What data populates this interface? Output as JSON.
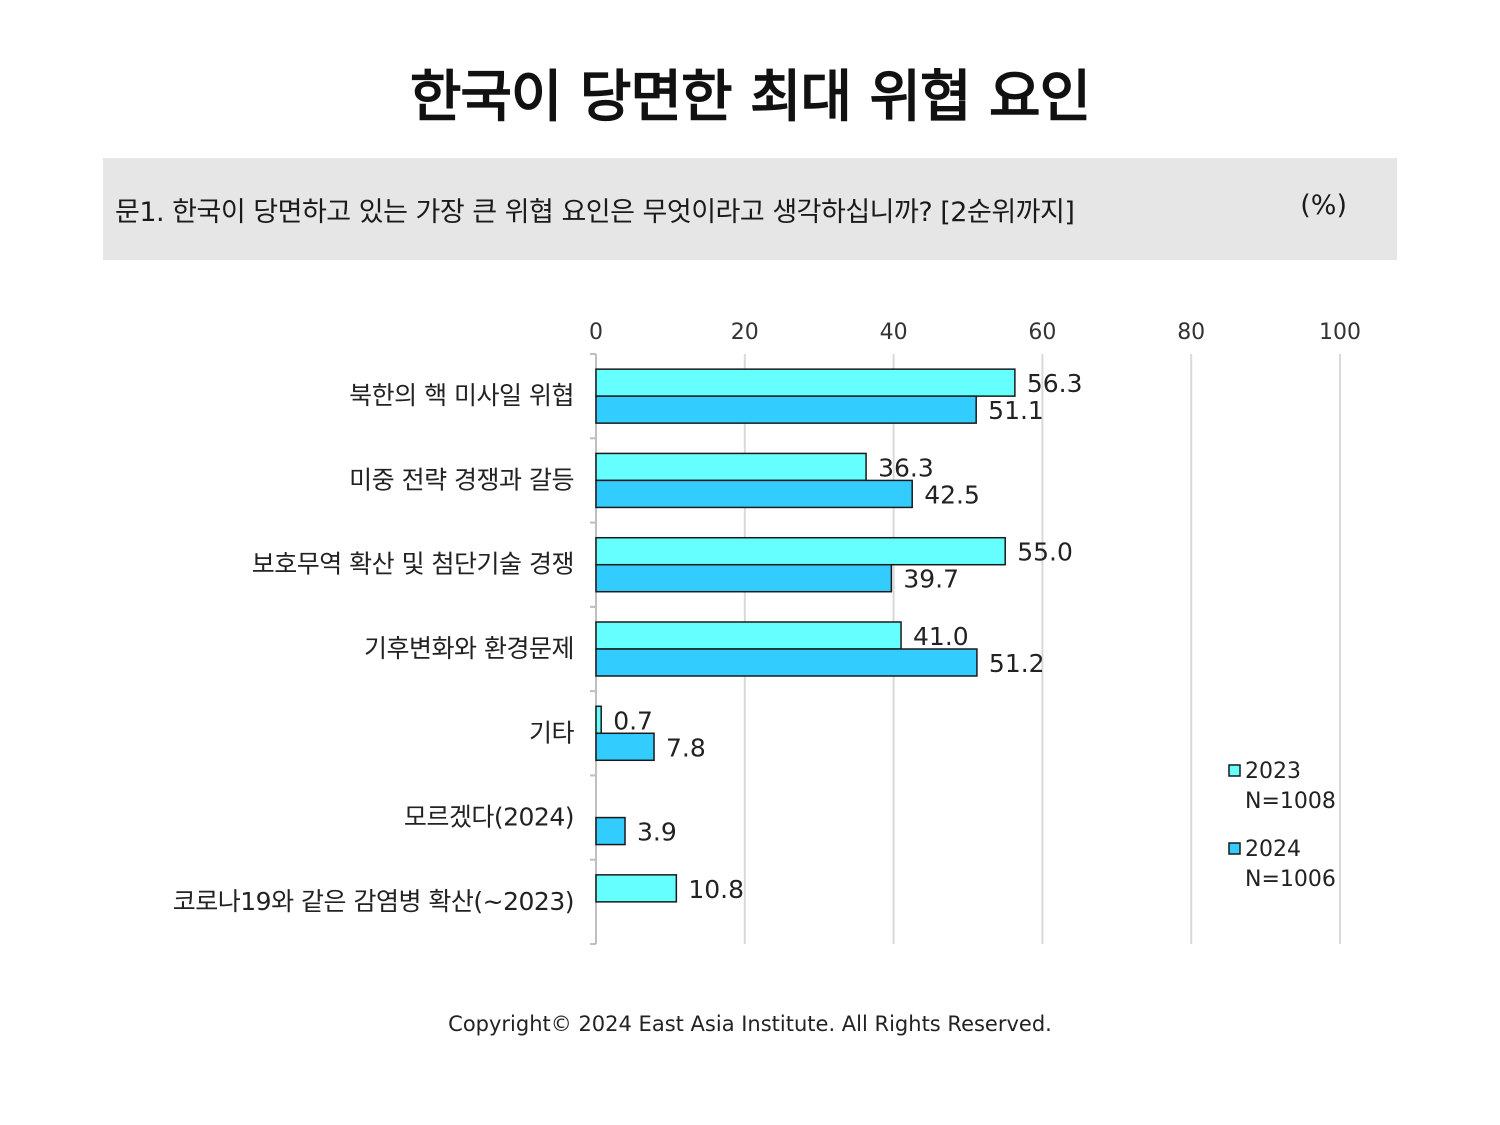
{
  "title": "한국이 당면한 최대 위협 요인",
  "question": {
    "text": "문1. 한국이 당면하고 있는 가장 큰 위협 요인은 무엇이라고 생각하십니까? [2순위까지]",
    "unit": "(%)"
  },
  "chart_data": {
    "type": "bar",
    "orientation": "horizontal",
    "categories": [
      "북한의 핵 미사일 위협",
      "미중 전략 경쟁과 갈등",
      "보호무역 확산 및 첨단기술 경쟁",
      "기후변화와 환경문제",
      "기타",
      "모르겠다(2024)",
      "코로나19와 같은 감염병 확산(~2023)"
    ],
    "series": [
      {
        "name": "2023",
        "sample": "N=1008",
        "color": "#66ffff",
        "values": [
          56.3,
          36.3,
          55.0,
          41.0,
          0.7,
          null,
          10.8
        ]
      },
      {
        "name": "2024",
        "sample": "N=1006",
        "color": "#33ccff",
        "values": [
          51.1,
          42.5,
          39.7,
          51.2,
          7.8,
          3.9,
          null
        ]
      }
    ],
    "xlim": [
      0,
      100
    ],
    "xticks": [
      0,
      20,
      40,
      60,
      80,
      100
    ],
    "grid": true,
    "axis_position": "top",
    "legend": "right"
  },
  "footer": "Copyright© 2024 East Asia Institute. All Rights Reserved."
}
